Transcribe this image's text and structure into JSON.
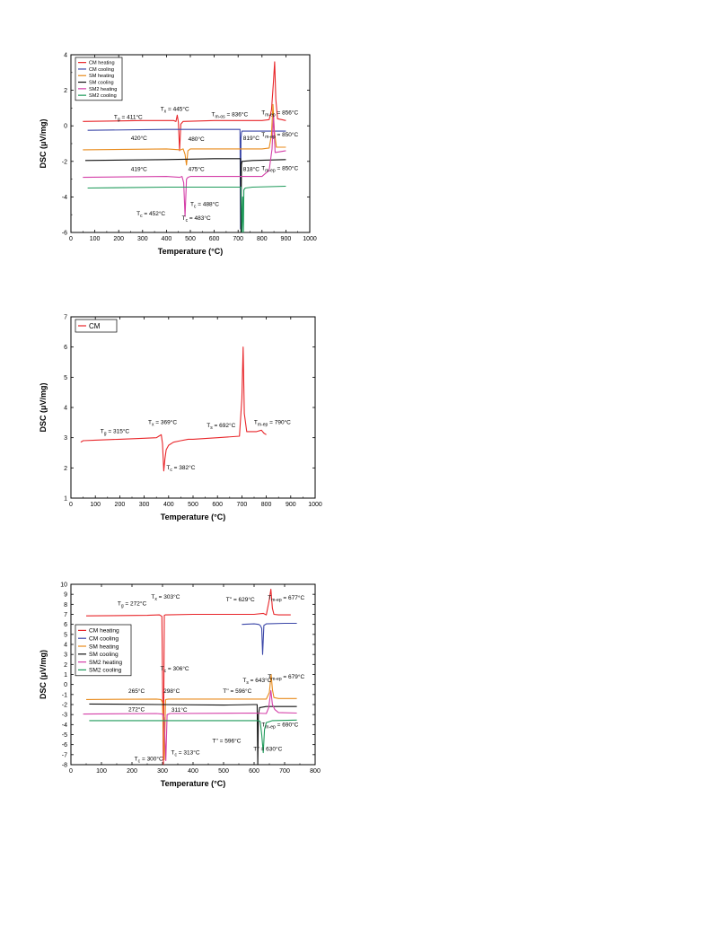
{
  "chart_data": [
    {
      "type": "line",
      "xlabel": "Temperature (°C)",
      "ylabel": "DSC (μV/mg)",
      "xlim": [
        0,
        1000
      ],
      "ylim": [
        -6,
        4
      ],
      "xticks": [
        "0",
        "100",
        "200",
        "300",
        "400",
        "500",
        "600",
        "700",
        "800",
        "900",
        "1000"
      ],
      "yticks": [
        "-6",
        "-4",
        "-2",
        "0",
        "2",
        "4"
      ],
      "legend_position": "top-left",
      "series": [
        {
          "name": "CM heating",
          "color": "#e8262a",
          "x": [
            50,
            300,
            430,
            440,
            445,
            450,
            455,
            460,
            470,
            600,
            800,
            830,
            840,
            848,
            853,
            858,
            865,
            900
          ],
          "y": [
            0.25,
            0.3,
            0.3,
            0.25,
            0.6,
            0.2,
            -1.4,
            0.1,
            0.25,
            0.3,
            0.3,
            0.35,
            0.9,
            2.5,
            3.6,
            1.5,
            0.4,
            0.3
          ]
        },
        {
          "name": "CM cooling",
          "color": "#3b47a8",
          "x": [
            70,
            400,
            600,
            700,
            708,
            710,
            712,
            714,
            716,
            760,
            900
          ],
          "y": [
            -0.25,
            -0.2,
            -0.2,
            -0.2,
            -0.2,
            -5.8,
            -0.7,
            -0.4,
            -0.3,
            -0.3,
            -0.3
          ]
        },
        {
          "name": "SM heating",
          "color": "#e88a1a",
          "x": [
            50,
            400,
            460,
            470,
            478,
            484,
            490,
            500,
            600,
            800,
            830,
            840,
            846,
            852,
            860,
            900
          ],
          "y": [
            -1.35,
            -1.3,
            -1.35,
            -1.3,
            -1.6,
            -2.2,
            -1.4,
            -1.3,
            -1.3,
            -1.3,
            -1.25,
            -0.5,
            1.2,
            -0.3,
            -1.2,
            -1.2
          ]
        },
        {
          "name": "SM cooling",
          "color": "#111111",
          "x": [
            60,
            400,
            600,
            700,
            710,
            712,
            714,
            716,
            760,
            900
          ],
          "y": [
            -1.95,
            -1.9,
            -1.85,
            -1.85,
            -1.85,
            -6.0,
            -2.2,
            -2.0,
            -1.95,
            -1.9
          ]
        },
        {
          "name": "SM2 heating",
          "color": "#d43fa8",
          "x": [
            50,
            400,
            455,
            465,
            472,
            478,
            484,
            490,
            500,
            600,
            800,
            830,
            842,
            848,
            855,
            900
          ],
          "y": [
            -2.9,
            -2.85,
            -2.9,
            -2.85,
            -3.2,
            -5.1,
            -3.0,
            -2.9,
            -2.85,
            -2.85,
            -2.85,
            -2.5,
            -1.3,
            0.6,
            -1.5,
            -1.4
          ]
        },
        {
          "name": "SM2 cooling",
          "color": "#1e9a5a",
          "x": [
            70,
            400,
            600,
            700,
            712,
            716,
            719,
            722,
            724,
            730,
            760,
            900
          ],
          "y": [
            -3.5,
            -3.45,
            -3.45,
            -3.45,
            -3.45,
            -6.0,
            -4.0,
            -6.0,
            -3.6,
            -3.5,
            -3.45,
            -3.4
          ]
        }
      ],
      "annotations": [
        {
          "sym": "T",
          "sub": "g",
          "val": " = 411°C",
          "tx": 240,
          "ty": 0.4
        },
        {
          "sym": "T",
          "sub": "x",
          "val": " = 445°C",
          "tx": 435,
          "ty": 0.85
        },
        {
          "sym": "T",
          "sub": "m-os",
          "val": " = 836°C",
          "tx": 665,
          "ty": 0.55
        },
        {
          "sym": "T",
          "sub": "m-ep",
          "val": " = 856°C",
          "tx": 875,
          "ty": 0.65
        },
        {
          "sym": "",
          "sub": "",
          "val": "420°C",
          "tx": 285,
          "ty": -0.8
        },
        {
          "sym": "",
          "sub": "",
          "val": "480°C",
          "tx": 525,
          "ty": -0.85
        },
        {
          "sym": "",
          "sub": "",
          "val": "819°C",
          "tx": 755,
          "ty": -0.8
        },
        {
          "sym": "T",
          "sub": "m-ep",
          "val": " = 850°C",
          "tx": 875,
          "ty": -0.6
        },
        {
          "sym": "",
          "sub": "",
          "val": "419°C",
          "tx": 285,
          "ty": -2.55
        },
        {
          "sym": "",
          "sub": "",
          "val": "475°C",
          "tx": 525,
          "ty": -2.55
        },
        {
          "sym": "",
          "sub": "",
          "val": "818°C",
          "tx": 755,
          "ty": -2.55
        },
        {
          "sym": "T",
          "sub": "m-ep",
          "val": " = 850°C",
          "tx": 875,
          "ty": -2.5
        },
        {
          "sym": "T",
          "sub": "c",
          "val": " = 488°C",
          "tx": 560,
          "ty": -4.5
        },
        {
          "sym": "T",
          "sub": "c",
          "val": " = 452°C",
          "tx": 335,
          "ty": -5.05
        },
        {
          "sym": "T",
          "sub": "c",
          "val": " = 483°C",
          "tx": 525,
          "ty": -5.3
        }
      ]
    },
    {
      "type": "line",
      "xlabel": "Temperature (°C)",
      "ylabel": "DSC (μV/mg)",
      "xlim": [
        0,
        1000
      ],
      "ylim": [
        1,
        7
      ],
      "xticks": [
        "0",
        "100",
        "200",
        "300",
        "400",
        "500",
        "600",
        "700",
        "800",
        "900",
        "1000"
      ],
      "yticks": [
        "1",
        "2",
        "3",
        "4",
        "5",
        "6",
        "7"
      ],
      "legend_position": "top-left",
      "series": [
        {
          "name": "CM",
          "color": "#e8262a",
          "x": [
            40,
            50,
            100,
            200,
            300,
            350,
            360,
            370,
            375,
            380,
            385,
            390,
            400,
            420,
            450,
            480,
            500,
            600,
            690,
            700,
            705,
            710,
            720,
            760,
            780,
            790,
            800
          ],
          "y": [
            2.85,
            2.9,
            2.92,
            2.95,
            2.98,
            3.0,
            3.05,
            3.1,
            2.8,
            1.9,
            2.3,
            2.6,
            2.75,
            2.85,
            2.9,
            2.95,
            2.95,
            3.0,
            3.05,
            4.3,
            6.0,
            3.8,
            3.2,
            3.2,
            3.25,
            3.15,
            3.1
          ]
        }
      ],
      "annotations": [
        {
          "sym": "T",
          "sub": "g",
          "val": " = 315°C",
          "tx": 180,
          "ty": 3.15
        },
        {
          "sym": "T",
          "sub": "x",
          "val": " = 369°C",
          "tx": 375,
          "ty": 3.45
        },
        {
          "sym": "T",
          "sub": "s",
          "val": " = 692°C",
          "tx": 615,
          "ty": 3.35
        },
        {
          "sym": "T",
          "sub": "m-ep",
          "val": " = 790°C",
          "tx": 825,
          "ty": 3.45
        },
        {
          "sym": "T",
          "sub": "c",
          "val": " = 382°C",
          "tx": 450,
          "ty": 1.95
        }
      ]
    },
    {
      "type": "line",
      "xlabel": "Temperature (°C)",
      "ylabel": "DSC (μV/mg)",
      "xlim": [
        0,
        800
      ],
      "ylim": [
        -8,
        10
      ],
      "xticks": [
        "0",
        "100",
        "200",
        "300",
        "400",
        "500",
        "600",
        "700",
        "800"
      ],
      "yticks": [
        "-8",
        "-7",
        "-6",
        "-5",
        "-4",
        "-3",
        "-2",
        "-1",
        "0",
        "1",
        "2",
        "3",
        "4",
        "5",
        "6",
        "7",
        "8",
        "9",
        "10"
      ],
      "legend_position": "center-left",
      "series": [
        {
          "name": "CM heating",
          "color": "#e8262a",
          "x": [
            50,
            250,
            290,
            298,
            303,
            306,
            309,
            315,
            400,
            600,
            630,
            640,
            650,
            655,
            660,
            665,
            680,
            720
          ],
          "y": [
            6.85,
            6.9,
            6.95,
            6.8,
            -8,
            6.9,
            6.95,
            6.95,
            7.0,
            7.0,
            7.1,
            6.95,
            8.5,
            9.5,
            7.6,
            7.0,
            6.95,
            6.95
          ]
        },
        {
          "name": "CM cooling",
          "color": "#3b47a8",
          "x": [
            560,
            600,
            615,
            620,
            625,
            628,
            632,
            640,
            700,
            740
          ],
          "y": [
            6.0,
            6.05,
            6.0,
            5.9,
            5.6,
            3.0,
            5.9,
            6.05,
            6.1,
            6.1
          ]
        },
        {
          "name": "SM heating",
          "color": "#e88a1a",
          "x": [
            50,
            280,
            295,
            300,
            306,
            310,
            320,
            600,
            640,
            650,
            656,
            660,
            665,
            680,
            740
          ],
          "y": [
            -1.5,
            -1.45,
            -1.5,
            -1.8,
            -7.5,
            -1.5,
            -1.45,
            -1.45,
            -1.45,
            -0.8,
            1.0,
            -0.5,
            -1.3,
            -1.4,
            -1.4
          ]
        },
        {
          "name": "SM cooling",
          "color": "#111111",
          "x": [
            60,
            300,
            500,
            600,
            610,
            612,
            614,
            618,
            640,
            700,
            740
          ],
          "y": [
            -1.95,
            -2.0,
            -2.05,
            -2.0,
            -2.0,
            -8.0,
            -3.0,
            -2.3,
            -2.2,
            -2.2,
            -2.2
          ]
        },
        {
          "name": "SM2 heating",
          "color": "#d43fa8",
          "x": [
            40,
            280,
            300,
            305,
            311,
            315,
            325,
            600,
            640,
            648,
            655,
            660,
            668,
            680,
            740
          ],
          "y": [
            -2.95,
            -2.9,
            -2.95,
            -3.3,
            -7.6,
            -3.0,
            -2.9,
            -2.85,
            -2.9,
            -2.3,
            -0.6,
            -2.0,
            -2.5,
            -2.8,
            -2.85
          ]
        },
        {
          "name": "SM2 cooling",
          "color": "#1e9a5a",
          "x": [
            60,
            300,
            400,
            550,
            600,
            615,
            620,
            625,
            630,
            634,
            640,
            660,
            740
          ],
          "y": [
            -3.6,
            -3.6,
            -3.6,
            -3.6,
            -3.6,
            -3.6,
            -3.7,
            -5.0,
            -6.8,
            -4.5,
            -3.8,
            -3.6,
            -3.55
          ]
        }
      ],
      "annotations": [
        {
          "sym": "T",
          "sub": "g",
          "val": " = 272°C",
          "tx": 200,
          "ty": 7.9
        },
        {
          "sym": "T",
          "sub": "x",
          "val": " = 303°C",
          "tx": 310,
          "ty": 8.55
        },
        {
          "sym": "T''",
          "sub": "",
          "val": " = 629°C",
          "tx": 555,
          "ty": 8.3
        },
        {
          "sym": "T",
          "sub": "m-ep",
          "val": " = 677°C",
          "tx": 705,
          "ty": 8.5
        },
        {
          "sym": "T",
          "sub": "c",
          "val": " = 306°C",
          "tx": 340,
          "ty": 1.4
        },
        {
          "sym": "",
          "sub": "",
          "val": "265°C",
          "tx": 215,
          "ty": -0.85
        },
        {
          "sym": "",
          "sub": "",
          "val": "298°C",
          "tx": 330,
          "ty": -0.85
        },
        {
          "sym": "T",
          "sub": "s",
          "val": " = 643°C",
          "tx": 610,
          "ty": 0.25
        },
        {
          "sym": "T''",
          "sub": "",
          "val": " = 596°C",
          "tx": 545,
          "ty": -0.85
        },
        {
          "sym": "T",
          "sub": "m-ep",
          "val": " = 679°C",
          "tx": 705,
          "ty": 0.6
        },
        {
          "sym": "",
          "sub": "",
          "val": "272°C",
          "tx": 215,
          "ty": -2.65
        },
        {
          "sym": "",
          "sub": "",
          "val": "311°C",
          "tx": 355,
          "ty": -2.7
        },
        {
          "sym": "T",
          "sub": "m-ep",
          "val": " = 690°C",
          "tx": 685,
          "ty": -4.2
        },
        {
          "sym": "T''",
          "sub": "",
          "val": " = 596°C",
          "tx": 510,
          "ty": -5.8
        },
        {
          "sym": "T''",
          "sub": "",
          "val": " = 630°C",
          "tx": 645,
          "ty": -6.6
        },
        {
          "sym": "T",
          "sub": "c",
          "val": " = 300°C",
          "tx": 255,
          "ty": -7.6
        },
        {
          "sym": "T",
          "sub": "c",
          "val": " = 313°C",
          "tx": 375,
          "ty": -6.95
        }
      ]
    }
  ]
}
